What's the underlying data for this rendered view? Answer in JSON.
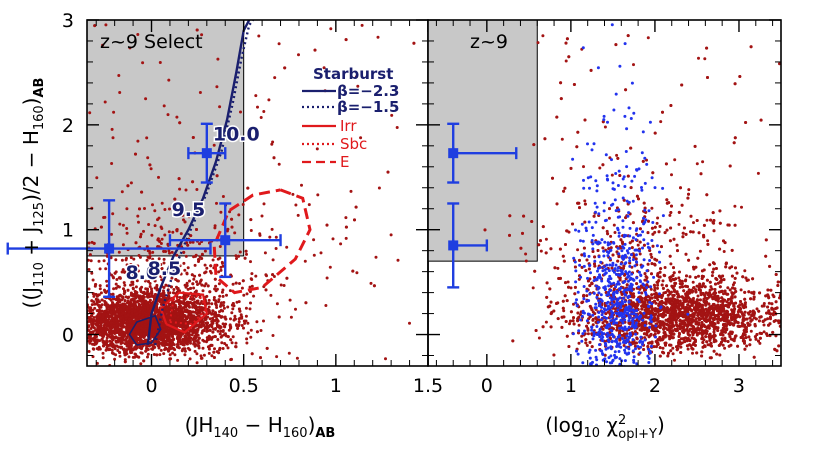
{
  "chart_data": [
    {
      "type": "scatter",
      "panel": "left",
      "title": "",
      "xlabel": "(JH140 − H160)AB",
      "ylabel": "((J110 + J125)/2 − H160)AB",
      "xlim": [
        -0.35,
        1.5
      ],
      "ylim": [
        -0.3,
        3.0
      ],
      "x_ticks": [
        "0",
        "0.5",
        "1",
        "1.5"
      ],
      "y_ticks": [
        "0",
        "1",
        "2",
        "3"
      ],
      "selection_box_label": "z~9 Select",
      "selection_box": {
        "x": [
          -0.35,
          0.5
        ],
        "y": [
          0.75,
          3.0
        ]
      },
      "legend": {
        "placement": "top-right",
        "title": "Starburst",
        "entries": [
          {
            "label": "β=−2.3",
            "color": "#1a1f6e",
            "style": "solid"
          },
          {
            "label": "β=−1.5",
            "color": "#1a1f6e",
            "style": "dotted"
          },
          {
            "label": "Irr",
            "color": "#e0191c",
            "style": "solid"
          },
          {
            "label": "Sbc",
            "color": "#e0191c",
            "style": "dotted"
          },
          {
            "label": "E",
            "color": "#e0191c",
            "style": "dashed"
          }
        ]
      },
      "redshift_track": {
        "name": "Starburst β=−2.3",
        "x": [
          -0.02,
          0.0,
          0.05,
          0.12,
          0.2,
          0.28,
          0.35,
          0.41,
          0.46,
          0.5,
          0.53
        ],
        "y": [
          -0.1,
          0.2,
          0.45,
          0.75,
          1.0,
          1.3,
          1.65,
          2.05,
          2.5,
          2.9,
          3.0
        ]
      },
      "redshift_track_dotted": {
        "name": "Starburst β=−1.5",
        "x": [
          0.02,
          0.06,
          0.12,
          0.2,
          0.3,
          0.38,
          0.44,
          0.49,
          0.53,
          0.55
        ],
        "y": [
          -0.1,
          0.25,
          0.6,
          0.95,
          1.35,
          1.75,
          2.2,
          2.65,
          2.95,
          3.0
        ]
      },
      "redshift_labels": [
        {
          "text": "8.0",
          "x": -0.05,
          "y": 0.53
        },
        {
          "text": "8.5",
          "x": 0.07,
          "y": 0.57
        },
        {
          "text": "9.5",
          "x": 0.2,
          "y": 1.13
        },
        {
          "text": "10.0",
          "x": 0.46,
          "y": 1.85
        }
      ],
      "e_contour": {
        "x": [
          0.7,
          0.82,
          0.86,
          0.78,
          0.6,
          0.45,
          0.35,
          0.34,
          0.42,
          0.55,
          0.7
        ],
        "y": [
          1.38,
          1.3,
          1.0,
          0.72,
          0.45,
          0.4,
          0.55,
          0.85,
          1.18,
          1.33,
          1.38
        ]
      },
      "irr_contour": {
        "x": [
          0.08,
          0.18,
          0.3,
          0.28,
          0.15,
          0.05,
          0.08
        ],
        "y": [
          0.1,
          0.02,
          0.2,
          0.38,
          0.4,
          0.25,
          0.1
        ]
      },
      "sbc_contour": {
        "x": [
          0.1,
          0.22,
          0.3,
          0.26,
          0.12,
          0.1
        ],
        "y": [
          0.12,
          0.1,
          0.25,
          0.37,
          0.34,
          0.12
        ]
      },
      "blue_contour": {
        "x": [
          -0.08,
          0.0,
          0.05,
          0.02,
          -0.08,
          -0.12,
          -0.08
        ],
        "y": [
          -0.1,
          -0.08,
          0.05,
          0.18,
          0.12,
          0.0,
          -0.1
        ]
      },
      "candidates": [
        {
          "x": 0.3,
          "y": 1.73,
          "xerr": 0.1,
          "yerr": 0.28
        },
        {
          "x": -0.23,
          "y": 0.82,
          "xerr": 0.55,
          "yerr": 0.46
        },
        {
          "x": 0.4,
          "y": 0.9,
          "xerr": 0.3,
          "yerr": 0.35
        }
      ],
      "population_color": "#a31313",
      "candidate_color": "#1f3ee0"
    },
    {
      "type": "scatter",
      "panel": "right",
      "title": "",
      "xlabel": "(log10 χ²opl+Y)",
      "ylabel": "",
      "xlim": [
        -0.7,
        3.5
      ],
      "ylim": [
        -0.3,
        3.0
      ],
      "x_ticks": [
        "0",
        "1",
        "2",
        "3"
      ],
      "y_ticks": [
        "0",
        "1",
        "2",
        "3"
      ],
      "selection_box_label": "z~9",
      "selection_box": {
        "x": [
          -0.7,
          0.6
        ],
        "y": [
          0.7,
          3.0
        ]
      },
      "candidates": [
        {
          "x": -0.4,
          "y": 1.73,
          "xerr_low": 0.0,
          "xerr_high": 0.75,
          "yerr": 0.28
        },
        {
          "x": -0.4,
          "y": 0.85,
          "xerr_low": 0.0,
          "xerr_high": 0.4,
          "yerr": 0.4
        }
      ],
      "population_color": "#a31313",
      "interlopers_color": "#2233ee",
      "candidate_color": "#1f3ee0"
    }
  ],
  "colors": {
    "frame": "#000000",
    "grey_box": "#c8c8c8",
    "track": "#1a1f6e",
    "red_models": "#e0191c",
    "points_red": "#a31313",
    "points_blue": "#2233ee",
    "candidates": "#1f3ee0"
  }
}
